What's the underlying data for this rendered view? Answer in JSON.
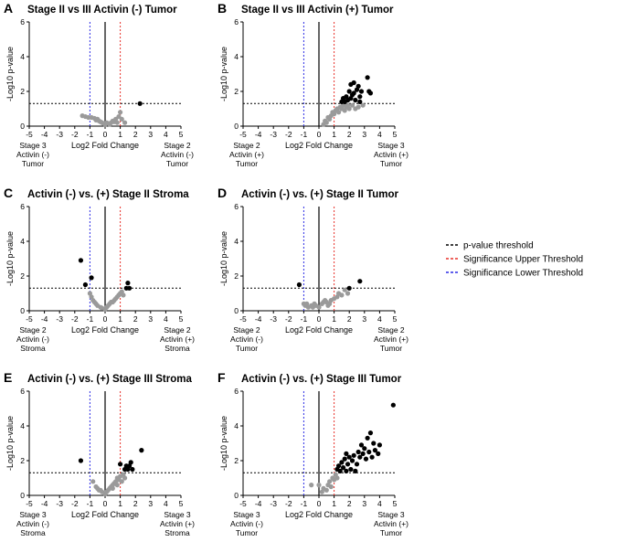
{
  "figure": {
    "legend": [
      {
        "label": "p-value threshold",
        "color": "#000000"
      },
      {
        "label": "Significance Upper Threshold",
        "color": "#e8312a"
      },
      {
        "label": "Significance Lower Threshold",
        "color": "#2c2ce6"
      }
    ]
  },
  "chart_data": [
    {
      "type": "scatter",
      "letter": "A",
      "title": "Stage II vs III Activin (-) Tumor",
      "xlabel": "Log2 Fold Change",
      "ylabel": "-Log10 p-value",
      "xlim": [
        -5,
        5
      ],
      "ylim": [
        0,
        6
      ],
      "xticks": [
        -5,
        -4,
        -3,
        -2,
        -1,
        0,
        1,
        2,
        3,
        4,
        5
      ],
      "yticks": [
        0,
        2,
        4,
        6
      ],
      "p_threshold": 1.3,
      "fc_upper": 1,
      "fc_lower": -1,
      "left_label": [
        "Stage 3",
        "Activin (-)",
        "Tumor"
      ],
      "right_label": [
        "Stage 2",
        "Activin (-)",
        "Tumor"
      ],
      "grey_points": [
        [
          -1.5,
          0.6
        ],
        [
          -1.3,
          0.55
        ],
        [
          -1.1,
          0.5
        ],
        [
          -0.9,
          0.5
        ],
        [
          -0.7,
          0.45
        ],
        [
          -0.6,
          0.35
        ],
        [
          -0.5,
          0.4
        ],
        [
          -0.4,
          0.3
        ],
        [
          -0.3,
          0.25
        ],
        [
          -0.2,
          0.2
        ],
        [
          -0.1,
          0.15
        ],
        [
          0.0,
          0.1
        ],
        [
          0.1,
          0.2
        ],
        [
          0.2,
          0.15
        ],
        [
          0.3,
          0.1
        ],
        [
          0.4,
          0.2
        ],
        [
          0.5,
          0.3
        ],
        [
          0.6,
          0.25
        ],
        [
          0.7,
          0.4
        ],
        [
          0.8,
          0.2
        ],
        [
          0.9,
          0.55
        ],
        [
          1.0,
          0.8
        ],
        [
          1.1,
          0.4
        ],
        [
          1.3,
          0.2
        ]
      ],
      "black_points": [
        [
          2.3,
          1.3
        ]
      ]
    },
    {
      "type": "scatter",
      "letter": "B",
      "title": "Stage II vs III Activin (+) Tumor",
      "xlabel": "Log2 Fold Change",
      "ylabel": "-Log10 p-value",
      "xlim": [
        -5,
        5
      ],
      "ylim": [
        0,
        6
      ],
      "xticks": [
        -5,
        -4,
        -3,
        -2,
        -1,
        0,
        1,
        2,
        3,
        4,
        5
      ],
      "yticks": [
        0,
        2,
        4,
        6
      ],
      "p_threshold": 1.3,
      "fc_upper": 1,
      "fc_lower": -1,
      "left_label": [
        "Stage 2",
        "Activin (+)",
        "Tumor"
      ],
      "right_label": [
        "Stage 3",
        "Activin (+)",
        "Tumor"
      ],
      "grey_points": [
        [
          0.3,
          0.1
        ],
        [
          0.4,
          0.3
        ],
        [
          0.5,
          0.2
        ],
        [
          0.6,
          0.5
        ],
        [
          0.7,
          0.4
        ],
        [
          0.8,
          0.6
        ],
        [
          0.9,
          0.8
        ],
        [
          1.0,
          0.7
        ],
        [
          1.1,
          0.9
        ],
        [
          1.2,
          1.0
        ],
        [
          1.3,
          0.8
        ],
        [
          1.4,
          1.1
        ],
        [
          1.5,
          1.0
        ],
        [
          1.6,
          1.2
        ],
        [
          1.7,
          0.9
        ],
        [
          1.8,
          1.1
        ],
        [
          1.9,
          1.2
        ],
        [
          2.0,
          1.0
        ],
        [
          2.2,
          1.2
        ],
        [
          2.4,
          1.0
        ],
        [
          2.6,
          1.1
        ],
        [
          2.9,
          1.2
        ]
      ],
      "black_points": [
        [
          1.5,
          1.4
        ],
        [
          1.6,
          1.6
        ],
        [
          1.7,
          1.4
        ],
        [
          1.8,
          1.7
        ],
        [
          1.9,
          1.5
        ],
        [
          2.0,
          2.0
        ],
        [
          2.1,
          2.4
        ],
        [
          2.1,
          1.6
        ],
        [
          2.2,
          1.8
        ],
        [
          2.3,
          2.5
        ],
        [
          2.3,
          1.9
        ],
        [
          2.4,
          1.5
        ],
        [
          2.5,
          2.1
        ],
        [
          2.6,
          2.3
        ],
        [
          2.7,
          1.7
        ],
        [
          2.7,
          1.4
        ],
        [
          2.8,
          2.0
        ],
        [
          3.2,
          2.8
        ],
        [
          3.3,
          2.0
        ],
        [
          3.4,
          1.9
        ]
      ]
    },
    {
      "type": "scatter",
      "letter": "C",
      "title": "Activin (-) vs. (+) Stage II Stroma",
      "xlabel": "Log2 Fold Change",
      "ylabel": "-Log10 p-value",
      "xlim": [
        -5,
        5
      ],
      "ylim": [
        0,
        6
      ],
      "xticks": [
        -5,
        -4,
        -3,
        -2,
        -1,
        0,
        1,
        2,
        3,
        4,
        5
      ],
      "yticks": [
        0,
        2,
        4,
        6
      ],
      "p_threshold": 1.3,
      "fc_upper": 1,
      "fc_lower": -1,
      "left_label": [
        "Stage 2",
        "Activin (-)",
        "Stroma"
      ],
      "right_label": [
        "Stage 2",
        "Activin (+)",
        "Stroma"
      ],
      "grey_points": [
        [
          -1.0,
          1.0
        ],
        [
          -0.9,
          0.8
        ],
        [
          -0.8,
          0.6
        ],
        [
          -0.7,
          0.5
        ],
        [
          -0.6,
          0.4
        ],
        [
          -0.5,
          0.3
        ],
        [
          -0.3,
          0.2
        ],
        [
          -0.2,
          0.15
        ],
        [
          0.0,
          0.1
        ],
        [
          0.1,
          0.2
        ],
        [
          0.2,
          0.3
        ],
        [
          0.3,
          0.4
        ],
        [
          0.4,
          0.5
        ],
        [
          0.5,
          0.5
        ],
        [
          0.6,
          0.6
        ],
        [
          0.7,
          0.7
        ],
        [
          0.8,
          0.8
        ],
        [
          0.9,
          0.9
        ],
        [
          1.0,
          1.0
        ],
        [
          1.1,
          1.1
        ],
        [
          1.2,
          0.9
        ]
      ],
      "black_points": [
        [
          -1.6,
          2.9
        ],
        [
          -1.3,
          1.5
        ],
        [
          -0.9,
          1.9
        ],
        [
          1.4,
          1.3
        ],
        [
          1.5,
          1.6
        ],
        [
          1.6,
          1.3
        ]
      ]
    },
    {
      "type": "scatter",
      "letter": "D",
      "title": "Activin (-) vs. (+) Stage II Tumor",
      "xlabel": "Log2 Fold Change",
      "ylabel": "-Log10 p-value",
      "xlim": [
        -5,
        5
      ],
      "ylim": [
        0,
        6
      ],
      "xticks": [
        -5,
        -4,
        -3,
        -2,
        -1,
        0,
        1,
        2,
        3,
        4,
        5
      ],
      "yticks": [
        0,
        2,
        4,
        6
      ],
      "p_threshold": 1.3,
      "fc_upper": 1,
      "fc_lower": -1,
      "left_label": [
        "Stage 2",
        "Activin (-)",
        "Tumor"
      ],
      "right_label": [
        "Stage 2",
        "Activin (+)",
        "Tumor"
      ],
      "grey_points": [
        [
          -1.0,
          0.4
        ],
        [
          -0.9,
          0.3
        ],
        [
          -0.8,
          0.4
        ],
        [
          -0.7,
          0.2
        ],
        [
          -0.5,
          0.3
        ],
        [
          -0.4,
          0.2
        ],
        [
          -0.3,
          0.4
        ],
        [
          -0.2,
          0.3
        ],
        [
          0.0,
          0.2
        ],
        [
          0.2,
          0.4
        ],
        [
          0.3,
          0.5
        ],
        [
          0.4,
          0.6
        ],
        [
          0.5,
          0.5
        ],
        [
          0.6,
          0.3
        ],
        [
          0.7,
          0.4
        ],
        [
          0.8,
          0.6
        ],
        [
          1.0,
          0.7
        ],
        [
          1.2,
          0.8
        ],
        [
          1.3,
          1.0
        ],
        [
          1.5,
          0.9
        ],
        [
          1.7,
          1.2
        ],
        [
          1.9,
          1.0
        ]
      ],
      "black_points": [
        [
          -1.3,
          1.5
        ],
        [
          2.0,
          1.3
        ],
        [
          2.7,
          1.7
        ]
      ]
    },
    {
      "type": "scatter",
      "letter": "E",
      "title": "Activin (-) vs. (+) Stage III Stroma",
      "xlabel": "Log2 Fold Change",
      "ylabel": "-Log10 p-value",
      "xlim": [
        -5,
        5
      ],
      "ylim": [
        0,
        6
      ],
      "xticks": [
        -5,
        -4,
        -3,
        -2,
        -1,
        0,
        1,
        2,
        3,
        4,
        5
      ],
      "yticks": [
        0,
        2,
        4,
        6
      ],
      "p_threshold": 1.3,
      "fc_upper": 1,
      "fc_lower": -1,
      "left_label": [
        "Stage 3",
        "Activin (-)",
        "Stroma"
      ],
      "right_label": [
        "Stage 3",
        "Activin (+)",
        "Stroma"
      ],
      "grey_points": [
        [
          -0.8,
          0.8
        ],
        [
          -0.6,
          0.5
        ],
        [
          -0.5,
          0.4
        ],
        [
          -0.4,
          0.3
        ],
        [
          -0.3,
          0.3
        ],
        [
          -0.2,
          0.2
        ],
        [
          0.0,
          0.1
        ],
        [
          0.1,
          0.2
        ],
        [
          0.2,
          0.3
        ],
        [
          0.3,
          0.4
        ],
        [
          0.4,
          0.5
        ],
        [
          0.5,
          0.6
        ],
        [
          0.5,
          0.4
        ],
        [
          0.6,
          0.7
        ],
        [
          0.7,
          0.8
        ],
        [
          0.8,
          0.6
        ],
        [
          0.8,
          1.0
        ],
        [
          0.9,
          0.9
        ],
        [
          1.0,
          1.1
        ],
        [
          1.1,
          0.8
        ],
        [
          1.2,
          1.2
        ],
        [
          1.3,
          1.0
        ]
      ],
      "black_points": [
        [
          -1.6,
          2.0
        ],
        [
          1.0,
          1.8
        ],
        [
          1.3,
          1.5
        ],
        [
          1.4,
          1.7
        ],
        [
          1.5,
          1.5
        ],
        [
          1.6,
          1.7
        ],
        [
          1.7,
          1.9
        ],
        [
          1.8,
          1.5
        ],
        [
          2.4,
          2.6
        ]
      ]
    },
    {
      "type": "scatter",
      "letter": "F",
      "title": "Activin (-) vs. (+) Stage III Tumor",
      "xlabel": "Log2 Fold Change",
      "ylabel": "-Log10 p-value",
      "xlim": [
        -5,
        5
      ],
      "ylim": [
        0,
        6
      ],
      "xticks": [
        -5,
        -4,
        -3,
        -2,
        -1,
        0,
        1,
        2,
        3,
        4,
        5
      ],
      "yticks": [
        0,
        2,
        4,
        6
      ],
      "p_threshold": 1.3,
      "fc_upper": 1,
      "fc_lower": -1,
      "left_label": [
        "Stage 3",
        "Activin (-)",
        "Tumor"
      ],
      "right_label": [
        "Stage 3",
        "Activin (+)",
        "Tumor"
      ],
      "grey_points": [
        [
          -0.5,
          0.6
        ],
        [
          0.0,
          0.6
        ],
        [
          0.2,
          0.2
        ],
        [
          0.3,
          0.4
        ],
        [
          0.5,
          0.3
        ],
        [
          0.6,
          0.6
        ],
        [
          0.7,
          0.8
        ],
        [
          0.8,
          0.5
        ],
        [
          0.9,
          1.0
        ],
        [
          1.0,
          0.9
        ],
        [
          1.1,
          1.2
        ],
        [
          1.2,
          1.0
        ]
      ],
      "black_points": [
        [
          1.2,
          1.5
        ],
        [
          1.3,
          1.7
        ],
        [
          1.4,
          1.4
        ],
        [
          1.5,
          1.9
        ],
        [
          1.6,
          1.6
        ],
        [
          1.7,
          2.1
        ],
        [
          1.8,
          1.4
        ],
        [
          1.8,
          2.4
        ],
        [
          1.9,
          1.8
        ],
        [
          2.0,
          2.2
        ],
        [
          2.1,
          1.5
        ],
        [
          2.2,
          2.0
        ],
        [
          2.3,
          2.3
        ],
        [
          2.4,
          1.4
        ],
        [
          2.5,
          1.8
        ],
        [
          2.6,
          2.5
        ],
        [
          2.7,
          2.2
        ],
        [
          2.8,
          2.9
        ],
        [
          2.9,
          2.4
        ],
        [
          3.0,
          2.7
        ],
        [
          3.1,
          2.1
        ],
        [
          3.2,
          3.3
        ],
        [
          3.3,
          2.5
        ],
        [
          3.4,
          3.6
        ],
        [
          3.5,
          2.2
        ],
        [
          3.6,
          3.0
        ],
        [
          3.7,
          2.6
        ],
        [
          3.9,
          2.4
        ],
        [
          4.0,
          2.9
        ],
        [
          4.9,
          5.2
        ]
      ]
    }
  ]
}
